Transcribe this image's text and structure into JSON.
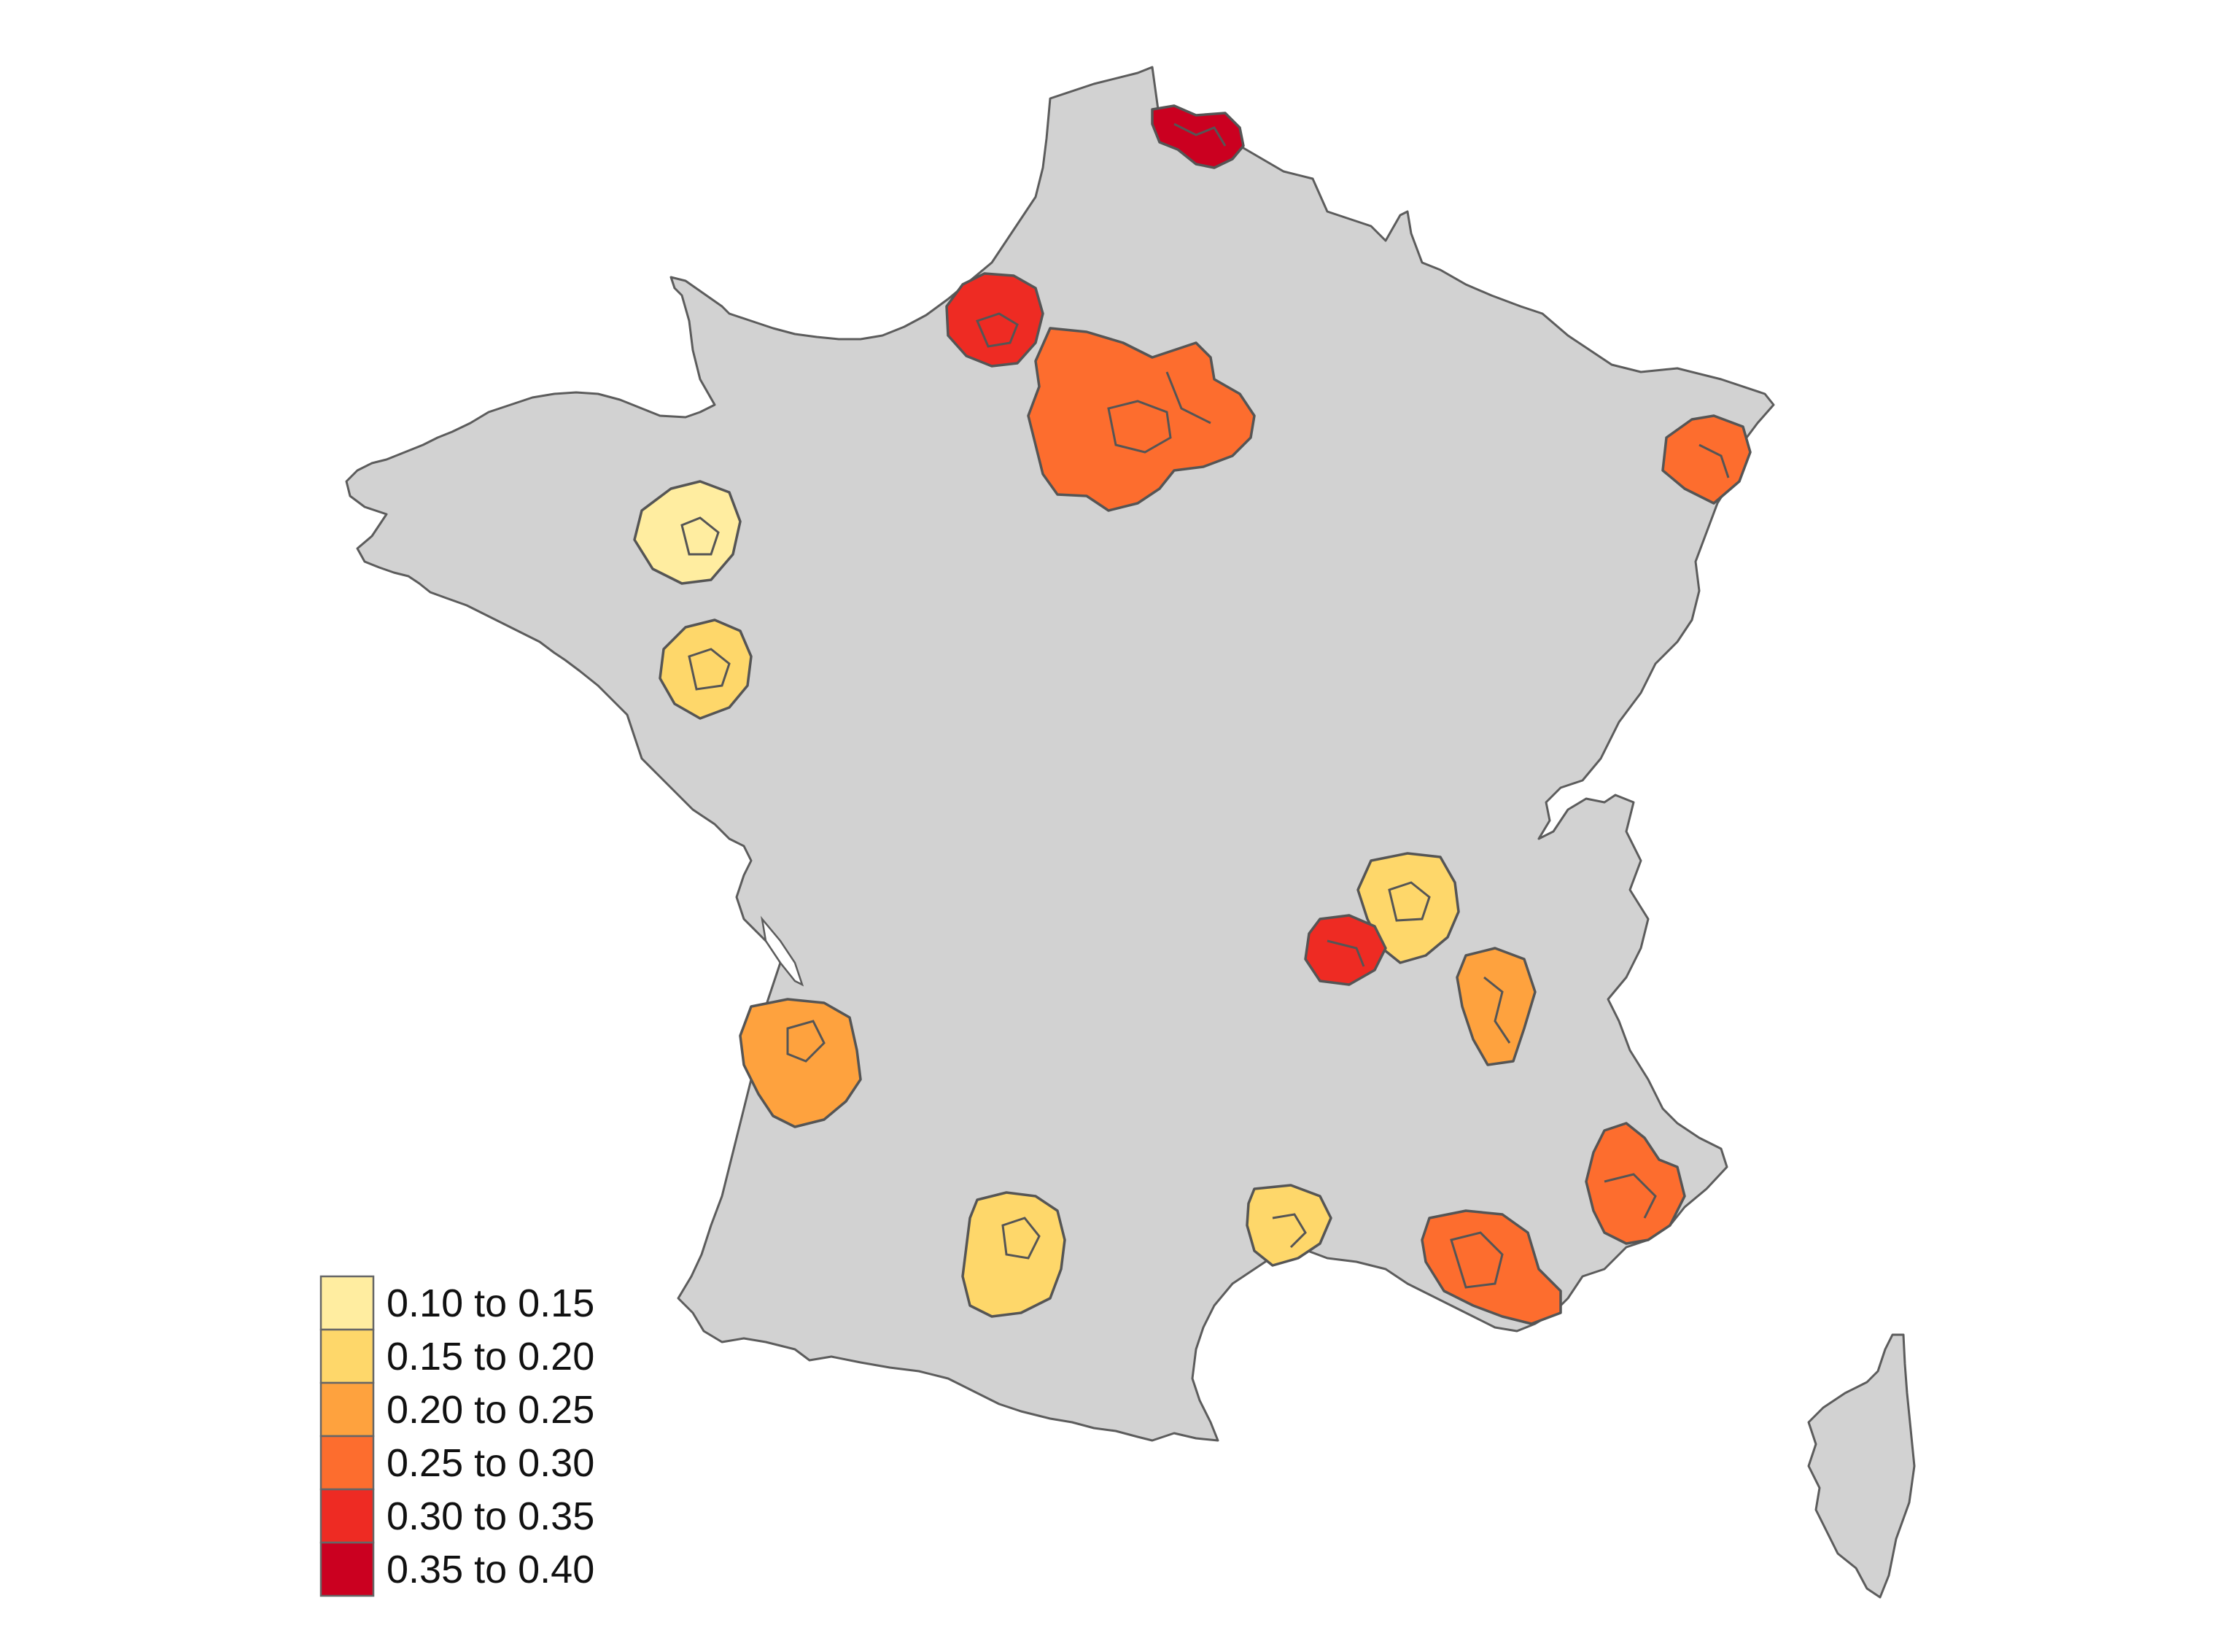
{
  "legend": {
    "items": [
      {
        "label": "0.10 to 0.15",
        "color": "#FFEDA0"
      },
      {
        "label": "0.15 to 0.20",
        "color": "#FED76A"
      },
      {
        "label": "0.20 to 0.25",
        "color": "#FEA23E"
      },
      {
        "label": "0.25 to 0.30",
        "color": "#FD6D2E"
      },
      {
        "label": "0.30 to 0.35",
        "color": "#EE2B23"
      },
      {
        "label": "0.35 to 0.40",
        "color": "#CB0020"
      }
    ]
  },
  "map": {
    "land_color": "#D2D2D2",
    "border_color": "#5C5C5C",
    "regions": [
      {
        "class_index": 5
      },
      {
        "class_index": 4
      },
      {
        "class_index": 3
      },
      {
        "class_index": 3
      },
      {
        "class_index": 0
      },
      {
        "class_index": 1
      },
      {
        "class_index": 1
      },
      {
        "class_index": 4
      },
      {
        "class_index": 2
      },
      {
        "class_index": 2
      },
      {
        "class_index": 3
      },
      {
        "class_index": 3
      },
      {
        "class_index": 1
      },
      {
        "class_index": 1
      }
    ]
  }
}
